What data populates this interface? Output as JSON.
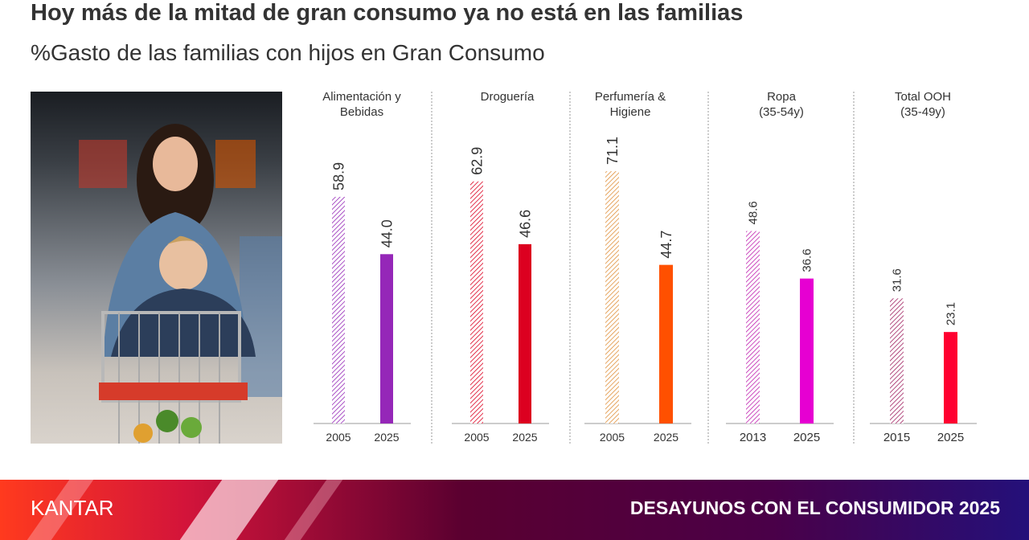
{
  "header": {
    "title": "Hoy más de la mitad de gran consumo ya no está en las familias",
    "subtitle": "%Gasto de las familias con hijos en Gran Consumo"
  },
  "footer": {
    "logo": "KANTAR",
    "event": "DESAYUNOS CON EL CONSUMIDOR 2025"
  },
  "chart_data": [
    {
      "type": "bar",
      "title": "Alimentación y Bebidas",
      "categories": [
        "2005",
        "2025"
      ],
      "values": [
        58.9,
        44.0
      ],
      "ylim": [
        0,
        71
      ],
      "color": "#9527b8",
      "hatched_first": true
    },
    {
      "type": "bar",
      "title": "Droguería",
      "categories": [
        "2005",
        "2025"
      ],
      "values": [
        62.9,
        46.6
      ],
      "ylim": [
        0,
        71
      ],
      "color": "#dc0020",
      "hatched_first": true
    },
    {
      "type": "bar",
      "title": "Perfumería & Higiene",
      "categories": [
        "2005",
        "2025"
      ],
      "values": [
        71.1,
        44.7
      ],
      "ylim": [
        0,
        77
      ],
      "color": "#ff5000",
      "hatch_color": "#e0903a",
      "hatched_first": true
    },
    {
      "type": "bar",
      "title": "Ropa (35-54y)",
      "categories": [
        "2013",
        "2025"
      ],
      "values": [
        48.6,
        36.6
      ],
      "ylim": [
        0,
        69
      ],
      "color": "#e600d2",
      "hatch_color": "#c020b0",
      "hatched_first": true
    },
    {
      "type": "bar",
      "title": "Total OOH (35-49y)",
      "categories": [
        "2015",
        "2025"
      ],
      "values": [
        31.6,
        23.1
      ],
      "ylim": [
        0,
        69
      ],
      "color": "#ff0030",
      "hatch_color": "#a02060",
      "hatched_first": true
    }
  ]
}
